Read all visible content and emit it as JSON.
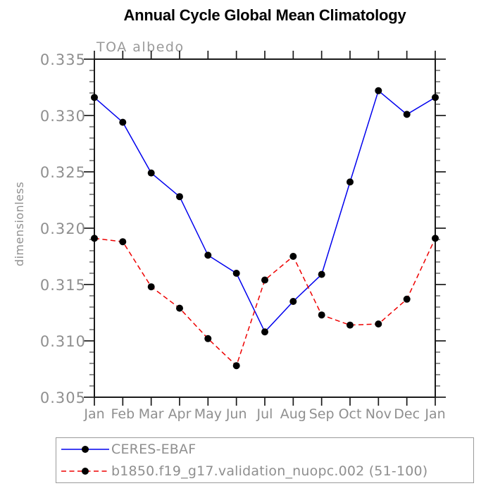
{
  "colors": {
    "background": "#ffffff",
    "axis_line": "#1a1a1a",
    "minor_tick": "#444444",
    "axis_text": "#8f8f8f",
    "title_text": "#000000",
    "legend_border": "#9a9a9a",
    "series_blue": "#0000ee",
    "series_red": "#ee0000",
    "marker": "#000000"
  },
  "chart_data": {
    "type": "line",
    "title": "Annual Cycle Global Mean Climatology",
    "subtitle": "TOA albedo",
    "ylabel": "dimensionless",
    "xlabel": "",
    "grid": false,
    "legend_position": "bottom-left",
    "categories": [
      "Jan",
      "Feb",
      "Mar",
      "Apr",
      "May",
      "Jun",
      "Jul",
      "Aug",
      "Sep",
      "Oct",
      "Nov",
      "Dec",
      "Jan"
    ],
    "ylim": [
      0.305,
      0.335
    ],
    "ytick_step": 0.005,
    "ytick_minor_step": 0.001,
    "ytick_labels": [
      "0.305",
      "0.310",
      "0.315",
      "0.320",
      "0.325",
      "0.330",
      "0.335"
    ],
    "marker": "filled-circle",
    "marker_color": "#000000",
    "series": [
      {
        "name": "CERES-EBAF",
        "color": "#0000ee",
        "dash": "solid",
        "values": [
          0.3316,
          0.3294,
          0.3249,
          0.3228,
          0.3176,
          0.316,
          0.3108,
          0.3135,
          0.3159,
          0.3241,
          0.3322,
          0.3301,
          0.3316
        ]
      },
      {
        "name": "b1850.f19_g17.validation_nuopc.002 (51-100)",
        "color": "#ee0000",
        "dash": "dashed",
        "values": [
          0.3191,
          0.3188,
          0.3148,
          0.3129,
          0.3102,
          0.3078,
          0.3154,
          0.3175,
          0.3123,
          0.3114,
          0.3115,
          0.3137,
          0.3191
        ]
      }
    ]
  }
}
